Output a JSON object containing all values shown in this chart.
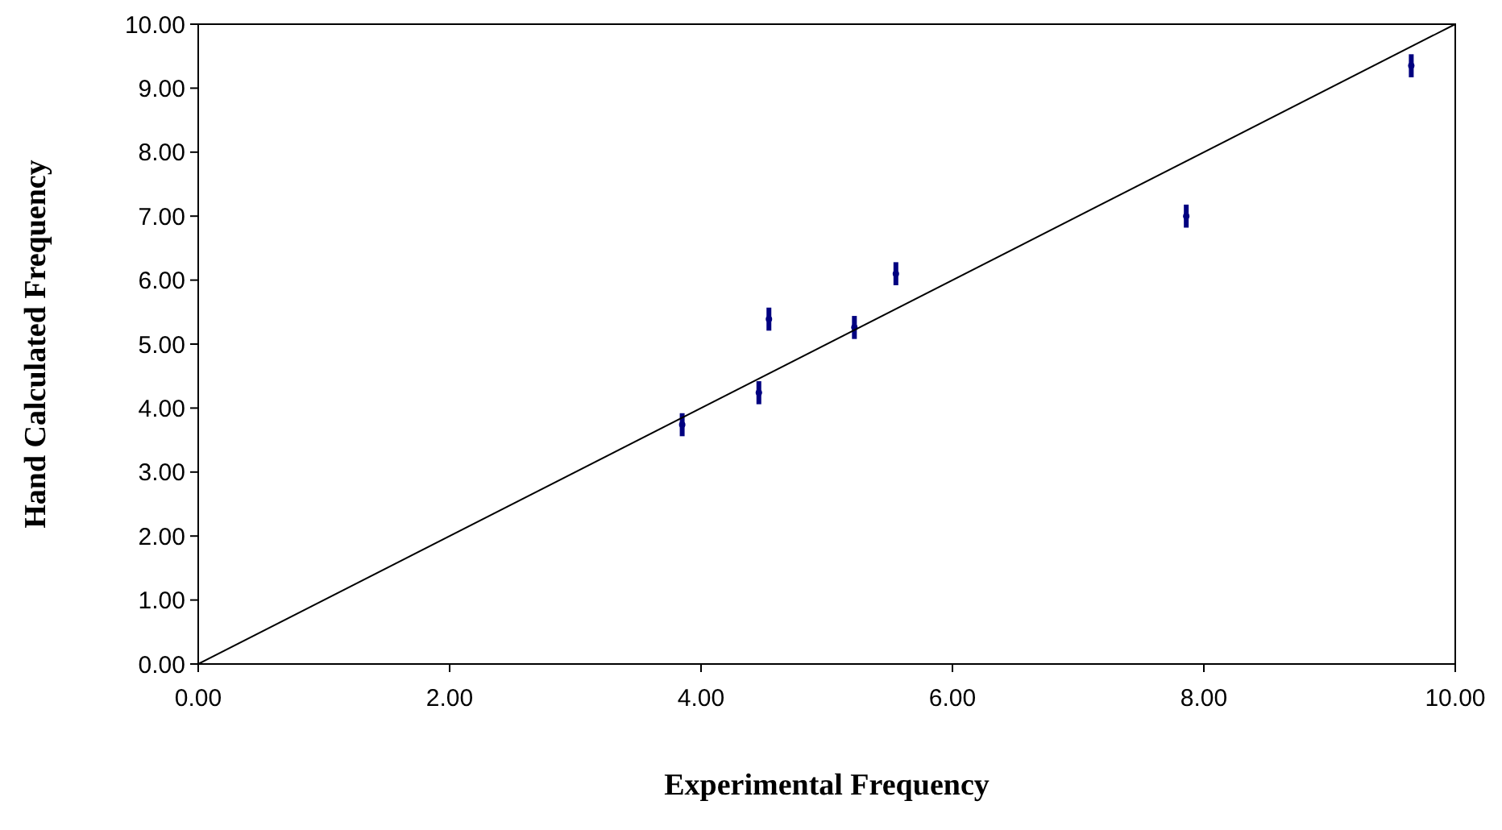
{
  "chart_data": {
    "type": "scatter",
    "xlabel": "Experimental Frequency",
    "ylabel": "Hand Calculated Frequency",
    "xlim": [
      0,
      10
    ],
    "ylim": [
      0,
      10
    ],
    "xticks": [
      {
        "value": 0,
        "label": "0.00"
      },
      {
        "value": 2,
        "label": "2.00"
      },
      {
        "value": 4,
        "label": "4.00"
      },
      {
        "value": 6,
        "label": "6.00"
      },
      {
        "value": 8,
        "label": "8.00"
      },
      {
        "value": 10,
        "label": "10.00"
      }
    ],
    "yticks": [
      {
        "value": 0,
        "label": "0.00"
      },
      {
        "value": 1,
        "label": "1.00"
      },
      {
        "value": 2,
        "label": "2.00"
      },
      {
        "value": 3,
        "label": "3.00"
      },
      {
        "value": 4,
        "label": "4.00"
      },
      {
        "value": 5,
        "label": "5.00"
      },
      {
        "value": 6,
        "label": "6.00"
      },
      {
        "value": 7,
        "label": "7.00"
      },
      {
        "value": 8,
        "label": "8.00"
      },
      {
        "value": 9,
        "label": "9.00"
      },
      {
        "value": 10,
        "label": "10.00"
      }
    ],
    "grid": false,
    "series": [
      {
        "marker": "circle",
        "color": "#000080",
        "x": [
          3.85,
          4.46,
          4.54,
          5.22,
          5.55,
          7.86,
          9.65
        ],
        "values": [
          3.74,
          4.24,
          5.39,
          5.26,
          6.1,
          7.0,
          9.35
        ],
        "errors": [
          0.18,
          0.18,
          0.18,
          0.18,
          0.18,
          0.18,
          0.18
        ]
      },
      {
        "type": "line",
        "color": "#000000",
        "x": [
          0,
          10
        ],
        "values": [
          0,
          10
        ]
      }
    ]
  }
}
